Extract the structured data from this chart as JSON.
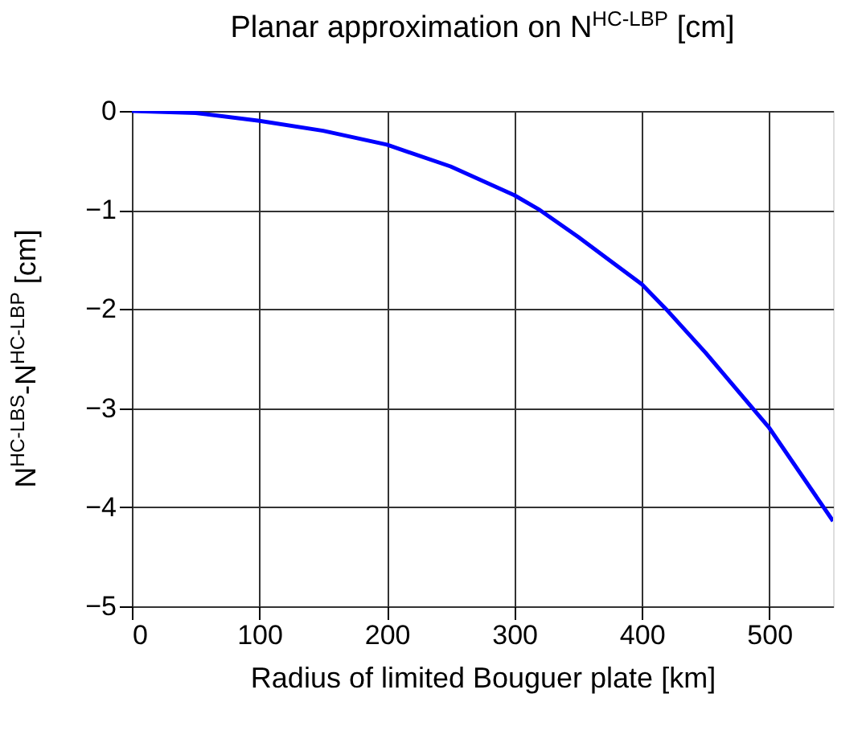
{
  "chart_data": {
    "type": "line",
    "title": "Planar approximation on N$^{HC-LBP}$ [cm]",
    "xlabel": "Radius of limited Bouguer plate [km]",
    "ylabel": "N$^{HC-LBS}$-N$^{HC-LBP}$ [cm]",
    "x": [
      0,
      50,
      100,
      150,
      200,
      250,
      300,
      320,
      350,
      400,
      419,
      450,
      500,
      550
    ],
    "series": [
      {
        "color": "#0000ff",
        "values": [
          0,
          -0.02,
          -0.1,
          -0.2,
          -0.34,
          -0.56,
          -0.85,
          -1.0,
          -1.27,
          -1.75,
          -2.0,
          -2.44,
          -3.2,
          -4.14
        ]
      }
    ],
    "xlim": [
      0,
      550
    ],
    "xticks": [
      0,
      100,
      200,
      300,
      400,
      500
    ],
    "ylim": [
      -5,
      0
    ],
    "yticks": [
      -5,
      -4,
      -3,
      -2,
      -1,
      0
    ],
    "grid": true,
    "legend": false,
    "marker": "none",
    "line_style": "solid"
  }
}
